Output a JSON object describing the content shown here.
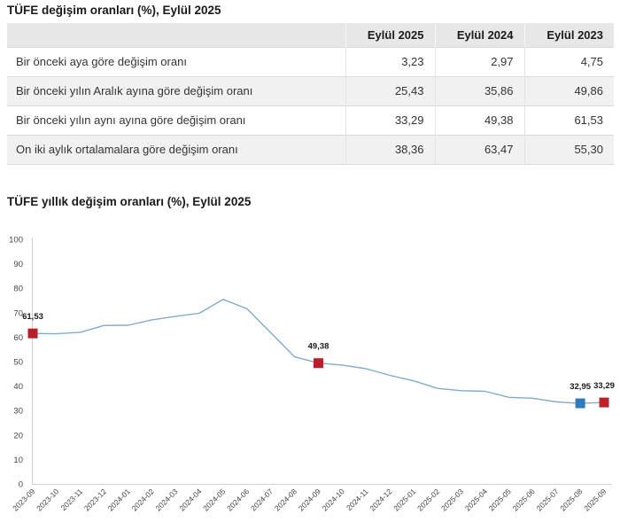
{
  "table_title": "TÜFE değişim oranları (%), Eylül 2025",
  "chart_title": "TÜFE yıllık değişim oranları (%), Eylül 2025",
  "table": {
    "headers": [
      "",
      "Eylül 2025",
      "Eylül 2024",
      "Eylül 2023"
    ],
    "rows": [
      {
        "label": "Bir önceki aya göre değişim oranı",
        "values": [
          "3,23",
          "2,97",
          "4,75"
        ]
      },
      {
        "label": "Bir önceki yılın Aralık ayına göre değişim oranı",
        "values": [
          "25,43",
          "35,86",
          "49,86"
        ]
      },
      {
        "label": "Bir önceki yılın aynı ayına göre değişim oranı",
        "values": [
          "33,29",
          "49,38",
          "61,53"
        ]
      },
      {
        "label": "On iki aylık ortalamalara göre değişim oranı",
        "values": [
          "38,36",
          "63,47",
          "55,30"
        ]
      }
    ]
  },
  "chart_data": {
    "type": "line",
    "title": "TÜFE yıllık değişim oranları (%), Eylül 2025",
    "x": [
      "2023-09",
      "2023-10",
      "2023-11",
      "2023-12",
      "2024-01",
      "2024-02",
      "2024-03",
      "2024-04",
      "2024-05",
      "2024-06",
      "2024-07",
      "2024-08",
      "2024-09",
      "2024-10",
      "2024-11",
      "2024-12",
      "2025-01",
      "2025-02",
      "2025-03",
      "2025-04",
      "2025-05",
      "2025-06",
      "2025-07",
      "2025-08",
      "2025-09"
    ],
    "values": [
      61.53,
      61.36,
      61.98,
      64.77,
      64.86,
      67.07,
      68.5,
      69.8,
      75.45,
      71.6,
      61.78,
      51.97,
      49.38,
      48.58,
      47.09,
      44.38,
      42.12,
      39.05,
      38.1,
      37.86,
      35.41,
      35.05,
      33.52,
      32.95,
      33.29
    ],
    "ylim": [
      0,
      100
    ],
    "ytick_step": 10,
    "grid": false,
    "legend": "none",
    "line_color": "#7FACCC",
    "axis_color": "#D0D0D0",
    "highlighted_points": [
      {
        "x": "2023-09",
        "value": 61.53,
        "label": "61,53",
        "color": "#B5202A"
      },
      {
        "x": "2024-09",
        "value": 49.38,
        "label": "49,38",
        "color": "#B5202A"
      },
      {
        "x": "2025-08",
        "value": 32.95,
        "label": "32,95",
        "color": "#2E7CBE"
      },
      {
        "x": "2025-09",
        "value": 33.29,
        "label": "33,29",
        "color": "#C02128"
      }
    ]
  }
}
